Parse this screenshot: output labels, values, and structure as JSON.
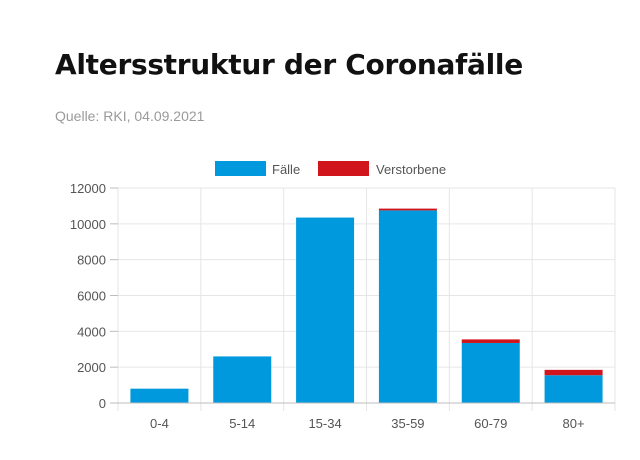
{
  "header": {
    "title": "Altersstruktur der Coronafälle",
    "source": "Quelle: RKI, 04.09.2021"
  },
  "colors": {
    "cases": "#0099dd",
    "deaths": "#d0161c"
  },
  "chart_data": {
    "type": "bar",
    "stacked": true,
    "categories": [
      "0-4",
      "5-14",
      "15-34",
      "35-59",
      "60-79",
      "80+"
    ],
    "series": [
      {
        "name": "Fälle",
        "color": "#0099dd",
        "values": [
          800,
          2600,
          10350,
          10750,
          3350,
          1550
        ]
      },
      {
        "name": "Verstorbene",
        "color": "#d0161c",
        "values": [
          0,
          0,
          0,
          100,
          200,
          300
        ]
      }
    ],
    "ylim": [
      0,
      12000
    ],
    "yticks": [
      "0",
      "2000",
      "4000",
      "6000",
      "8000",
      "10000",
      "12000"
    ],
    "grid": true,
    "legend": "top-center"
  }
}
